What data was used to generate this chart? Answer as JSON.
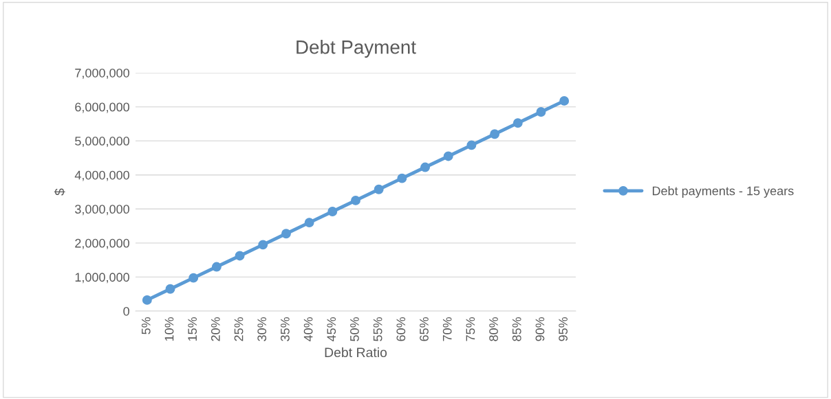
{
  "chart_data": {
    "type": "line",
    "title": "Debt Payment",
    "xlabel": "Debt Ratio",
    "ylabel": "$",
    "categories": [
      "5%",
      "10%",
      "15%",
      "20%",
      "25%",
      "30%",
      "35%",
      "40%",
      "45%",
      "50%",
      "55%",
      "60%",
      "65%",
      "70%",
      "75%",
      "80%",
      "85%",
      "90%",
      "95%"
    ],
    "series": [
      {
        "name": "Debt payments - 15 years",
        "color": "#5b9bd5",
        "values": [
          325000,
          650000,
          975000,
          1300000,
          1625000,
          1950000,
          2275000,
          2600000,
          2925000,
          3250000,
          3575000,
          3900000,
          4225000,
          4550000,
          4875000,
          5200000,
          5525000,
          5850000,
          6175000
        ]
      }
    ],
    "ylim": [
      0,
      7000000
    ],
    "yticks": [
      {
        "value": 0,
        "label": "0"
      },
      {
        "value": 1000000,
        "label": "1,000,000"
      },
      {
        "value": 2000000,
        "label": "2,000,000"
      },
      {
        "value": 3000000,
        "label": "3,000,000"
      },
      {
        "value": 4000000,
        "label": "4,000,000"
      },
      {
        "value": 5000000,
        "label": "5,000,000"
      },
      {
        "value": 6000000,
        "label": "6,000,000"
      },
      {
        "value": 7000000,
        "label": "7,000,000"
      }
    ],
    "grid": "y",
    "legend": "right",
    "marker": "circle",
    "line_style": "solid"
  }
}
